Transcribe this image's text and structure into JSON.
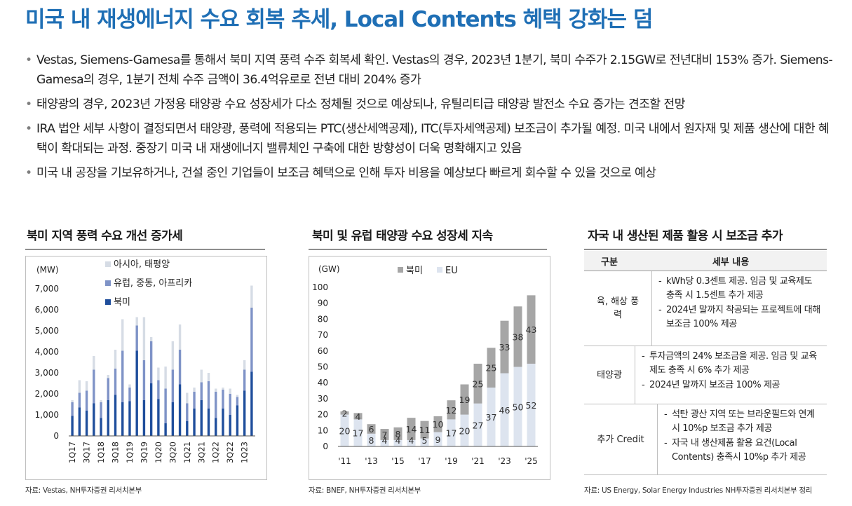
{
  "title": "미국 내 재생에너지 수요 회복 추세, Local Contents 혜택 강화는 덤",
  "bullets": [
    "Vestas, Siemens-Gamesa를 통해서 북미 지역 풍력 수주 회복세 확인. Vestas의 경우, 2023년 1분기, 북미 수주가 2.15GW로 전년대비 153% 증가. Siemens-Gamesa의 경우, 1분기 전체 수주 금액이 36.4억유로로 전년 대비 204% 증가",
    "태양광의 경우, 2023년 가정용 태양광 수요 성장세가 다소 정체될 것으로 예상되나, 유틸리티급 태양광 발전소 수요 증가는 견조할 전망",
    "IRA 법안 세부 사항이 결정되면서 태양광, 풍력에 적용되는 PTC(생산세액공제), ITC(투자세액공제) 보조금이 추가될 예정. 미국 내에서 원자재 및 제품 생산에 대한 혜택이 확대되는 과정. 중장기 미국 내 재생에너지 밸류체인 구축에 대한 방향성이 더욱 명확해지고 있음",
    "미국 내 공장을 기보유하거나, 건설 중인 기업들이 보조금 혜택으로 인해 투자 비용을 예상보다 빠르게 회수할 수 있을 것으로 예상"
  ],
  "sections": {
    "wind_title": "북미 지역 풍력 수요 개선 증가세",
    "solar_title": "북미 및 유럽 태양광 수요 성장세 지속",
    "table_title": "자국 내 생산된 제품 활용 시 보조금 추가"
  },
  "sources": {
    "wind": "자료: Vestas, NH투자증권 리서치본부",
    "solar": "자료: BNEF, NH투자증권 리서치본부",
    "table": "자료: US Energy, Solar Energy Industries NH투자증권 리서치본부 정리"
  },
  "colors": {
    "title_blue": "#1f6fb5",
    "north_america": "#1f4e9c",
    "europe": "#7f93c7",
    "asia": "#d6dce5",
    "solar_na": "#a6a6a6",
    "solar_eu": "#dde4ef"
  },
  "table": {
    "headers": [
      "구분",
      "세부 내용"
    ],
    "rows": [
      {
        "category": "육, 해상 풍력",
        "items": [
          "kWh당 0.3센트 제공. 임금 및 교육제도 충족 시 1.5센트 추가 제공",
          "2024년 말까지 착공되는 프로젝트에 대해 보조금 100% 제공"
        ]
      },
      {
        "category": "태양광",
        "items": [
          "투자금액의 24% 보조금을 제공. 임금 및 교육제도 충족 시 6% 추가 제공",
          "2024년 말까지 보조금 100% 제공"
        ]
      },
      {
        "category": "추가 Credit",
        "items": [
          "석탄 광산 지역 또는 브라운필드와 연계시 10%p 보조금 추가 제공",
          "자국 내 생산제품 활용 요건(Local Contents) 충족시 10%p 추가 제공"
        ]
      }
    ]
  },
  "chart_data": [
    {
      "type": "bar",
      "stacked": true,
      "title": "북미 지역 풍력 수요 개선 증가세",
      "ylabel": "(MW)",
      "ylim": [
        0,
        7000
      ],
      "yticks": [
        0,
        1000,
        2000,
        3000,
        4000,
        5000,
        6000,
        7000
      ],
      "ytick_labels": [
        "0",
        "1,000",
        "2,000",
        "3,000",
        "4,000",
        "5,000",
        "6,000",
        "7,000"
      ],
      "tick_labels": [
        "1Q17",
        "3Q17",
        "1Q18",
        "3Q18",
        "1Q19",
        "3Q19",
        "1Q20",
        "3Q20",
        "1Q21",
        "3Q21",
        "1Q22",
        "3Q22",
        "1Q23"
      ],
      "categories": [
        "1Q17",
        "2Q17",
        "3Q17",
        "4Q17",
        "1Q18",
        "2Q18",
        "3Q18",
        "4Q18",
        "1Q19",
        "2Q19",
        "3Q19",
        "4Q19",
        "1Q20",
        "2Q20",
        "3Q20",
        "4Q20",
        "1Q21",
        "2Q21",
        "3Q21",
        "4Q21",
        "1Q22",
        "2Q22",
        "3Q22",
        "4Q22",
        "1Q23",
        "2Q23"
      ],
      "legend_position": "top-left",
      "series": [
        {
          "name": "북미",
          "values": [
            950,
            1350,
            1200,
            1550,
            850,
            1700,
            1950,
            1600,
            1650,
            4050,
            1700,
            2500,
            1750,
            600,
            1600,
            2450,
            700,
            1300,
            1700,
            1300,
            850,
            1300,
            1000,
            1450,
            2150,
            3050
          ]
        },
        {
          "name": "유럽, 중동, 아프리카",
          "values": [
            650,
            700,
            950,
            1600,
            750,
            1050,
            1250,
            2450,
            650,
            1200,
            1900,
            2000,
            900,
            1650,
            1550,
            1650,
            850,
            800,
            850,
            1300,
            1250,
            900,
            1000,
            400,
            1000,
            3050
          ]
        },
        {
          "name": "아시아, 태평양",
          "values": [
            100,
            600,
            450,
            650,
            100,
            150,
            900,
            1500,
            150,
            400,
            2050,
            200,
            600,
            1050,
            1350,
            1200,
            500,
            200,
            600,
            400,
            150,
            100,
            250,
            100,
            450,
            1050
          ]
        }
      ]
    },
    {
      "type": "bar",
      "stacked": true,
      "title": "북미 및 유럽 태양광 수요 성장세 지속",
      "ylabel": "(GW)",
      "ylim": [
        0,
        100
      ],
      "yticks": [
        0,
        10,
        20,
        30,
        40,
        50,
        60,
        70,
        80,
        90,
        100
      ],
      "categories": [
        "'11",
        "'12",
        "'13",
        "'14",
        "'15",
        "'16",
        "'17",
        "'18",
        "'19",
        "'20",
        "'21",
        "'22",
        "'23",
        "'24",
        "'25"
      ],
      "tick_labels": [
        "'11",
        "'13",
        "'15",
        "'17",
        "'19",
        "'21",
        "'23",
        "'25"
      ],
      "legend_position": "top-left",
      "series": [
        {
          "name": "EU",
          "values": [
            20,
            17,
            8,
            4,
            4,
            4,
            5,
            9,
            17,
            20,
            27,
            37,
            46,
            50,
            52
          ]
        },
        {
          "name": "북미",
          "values": [
            2,
            4,
            6,
            7,
            8,
            14,
            11,
            10,
            12,
            19,
            25,
            25,
            33,
            38,
            43
          ]
        }
      ]
    }
  ]
}
